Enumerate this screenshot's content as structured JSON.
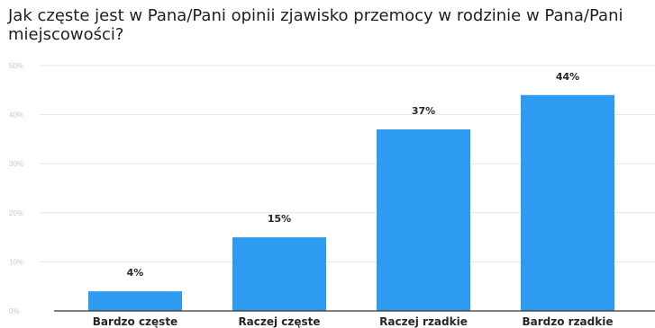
{
  "chart_data": {
    "type": "bar",
    "title": "Jak częste jest w Pana/Pani opinii zjawisko przemocy w rodzinie w Pana/Pani miejscowości?",
    "categories": [
      "Bardzo częste",
      "Raczej częste",
      "Raczej rzadkie",
      "Bardzo rzadkie"
    ],
    "values": [
      4,
      15,
      37,
      44
    ],
    "value_labels": [
      "4%",
      "15%",
      "37%",
      "44%"
    ],
    "y_ticks": [
      0,
      10,
      20,
      30,
      40,
      50
    ],
    "y_tick_labels": [
      "0%",
      "10%",
      "20%",
      "30%",
      "40%",
      "50%"
    ],
    "ylim": [
      0,
      50
    ],
    "xlabel": "",
    "ylabel": "",
    "grid": true,
    "bar_color": "#2d9bf0",
    "grid_color": "#e6e6e6",
    "axis_color": "#333333"
  }
}
